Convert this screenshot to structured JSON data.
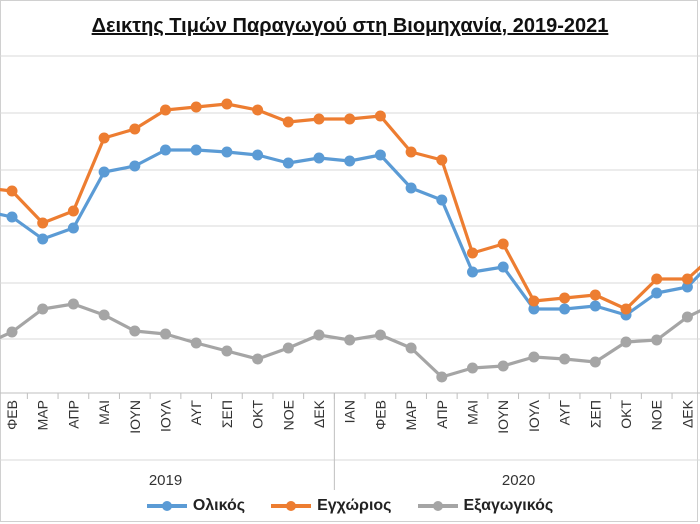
{
  "title": "Δεικτης Τιμών Παραγωγού στη Βιομηχανία, 2019-2021",
  "chart_data": {
    "type": "line",
    "categories": [
      "ΦΕΒ",
      "ΜΑΡ",
      "ΑΠΡ",
      "ΜΑΙ",
      "ΙΟΥΝ",
      "ΙΟΥΛ",
      "ΑΥΓ",
      "ΣΕΠ",
      "ΟΚΤ",
      "ΝΟΕ",
      "ΔΕΚ",
      "ΙΑΝ",
      "ΦΕΒ",
      "ΜΑΡ",
      "ΑΠΡ",
      "ΜΑΙ",
      "ΙΟΥΝ",
      "ΙΟΥΛ",
      "ΑΥΓ",
      "ΣΕΠ",
      "ΟΚΤ",
      "ΝΟΕ",
      "ΔΕΚ"
    ],
    "groups": [
      {
        "label": "2019",
        "start": 0,
        "end": 10
      },
      {
        "label": "2020",
        "start": 11,
        "end": 22
      }
    ],
    "series": [
      {
        "name": "Ολικός",
        "color": "#5b9bd5",
        "leading": 213,
        "trailing": 268,
        "values": [
          217,
          239,
          228,
          172,
          166,
          150,
          150,
          152,
          155,
          163,
          158,
          161,
          155,
          188,
          200,
          272,
          267,
          309,
          309,
          306,
          315,
          293,
          287
        ]
      },
      {
        "name": "Εγχώριος",
        "color": "#ed7d31",
        "leading": 189,
        "trailing": 262,
        "values": [
          191,
          223,
          211,
          138,
          129,
          110,
          107,
          104,
          110,
          122,
          119,
          119,
          116,
          152,
          160,
          253,
          244,
          301,
          298,
          295,
          309,
          279,
          279
        ]
      },
      {
        "name": "Εξαγωγικός",
        "color": "#a5a5a5",
        "leading": 340,
        "trailing": 308,
        "values": [
          332,
          309,
          304,
          315,
          331,
          334,
          343,
          351,
          359,
          348,
          335,
          340,
          335,
          348,
          377,
          368,
          366,
          357,
          359,
          362,
          342,
          340,
          317
        ]
      }
    ],
    "y_scale": "inverted-pixel-reading (no y tick labels visible)",
    "grid": true,
    "legend": "bottom"
  }
}
